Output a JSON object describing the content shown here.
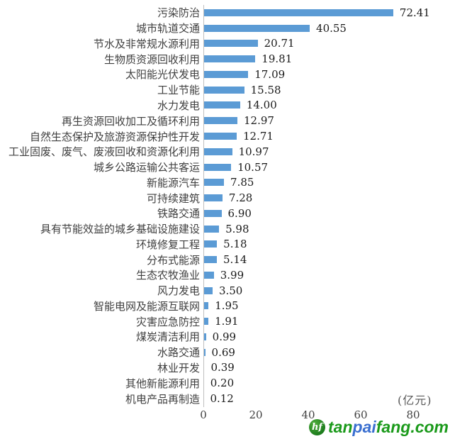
{
  "chart_data": {
    "type": "bar",
    "orientation": "horizontal",
    "title": "",
    "xlabel": "(亿元)",
    "ylabel": "",
    "xlim": [
      0,
      94
    ],
    "x_ticks": [
      0,
      20,
      40,
      60,
      80
    ],
    "grid": false,
    "legend": "none",
    "bar_color": "#5B9BD5",
    "axis_line_color": "#BFBFBF",
    "categories": [
      "污染防治",
      "城市轨道交通",
      "节水及非常规水源利用",
      "生物质资源回收利用",
      "太阳能光伏发电",
      "工业节能",
      "水力发电",
      "再生资源回收加工及循环利用",
      "自然生态保护及旅游资源保护性开发",
      "工业固废、废气、废液回收和资源化利用",
      "城乡公路运输公共客运",
      "新能源汽车",
      "可持续建筑",
      "铁路交通",
      "具有节能效益的城乡基础设施建设",
      "环境修复工程",
      "分布式能源",
      "生态农牧渔业",
      "风力发电",
      "智能电网及能源互联网",
      "灾害应急防控",
      "煤炭清洁利用",
      "水路交通",
      "林业开发",
      "其他新能源利用",
      "机电产品再制造"
    ],
    "values": [
      72.41,
      40.55,
      20.71,
      19.81,
      17.09,
      15.58,
      14.0,
      12.97,
      12.71,
      10.97,
      10.57,
      7.85,
      7.28,
      6.9,
      5.98,
      5.18,
      5.14,
      3.99,
      3.5,
      1.95,
      1.91,
      0.99,
      0.69,
      0.39,
      0.2,
      0.12
    ],
    "value_labels": [
      "72.41",
      "40.55",
      "20.71",
      "19.81",
      "17.09",
      "15.58",
      "14.00",
      "12.97",
      "12.71",
      "10.97",
      "10.57",
      "7.85",
      "7.28",
      "6.90",
      "5.98",
      "5.18",
      "5.14",
      "3.99",
      "3.50",
      "1.95",
      "1.91",
      "0.99",
      "0.69",
      "0.39",
      "0.20",
      "0.12"
    ]
  },
  "watermark": {
    "badge_text": "hf",
    "text_parts": [
      {
        "text": "tan",
        "color": "#1b9a1b"
      },
      {
        "text": "pai",
        "color": "#3a6fd0"
      },
      {
        "text": "fang",
        "color": "#1b9a1b"
      },
      {
        "text": ".com",
        "color": "#1b9a1b"
      }
    ]
  }
}
